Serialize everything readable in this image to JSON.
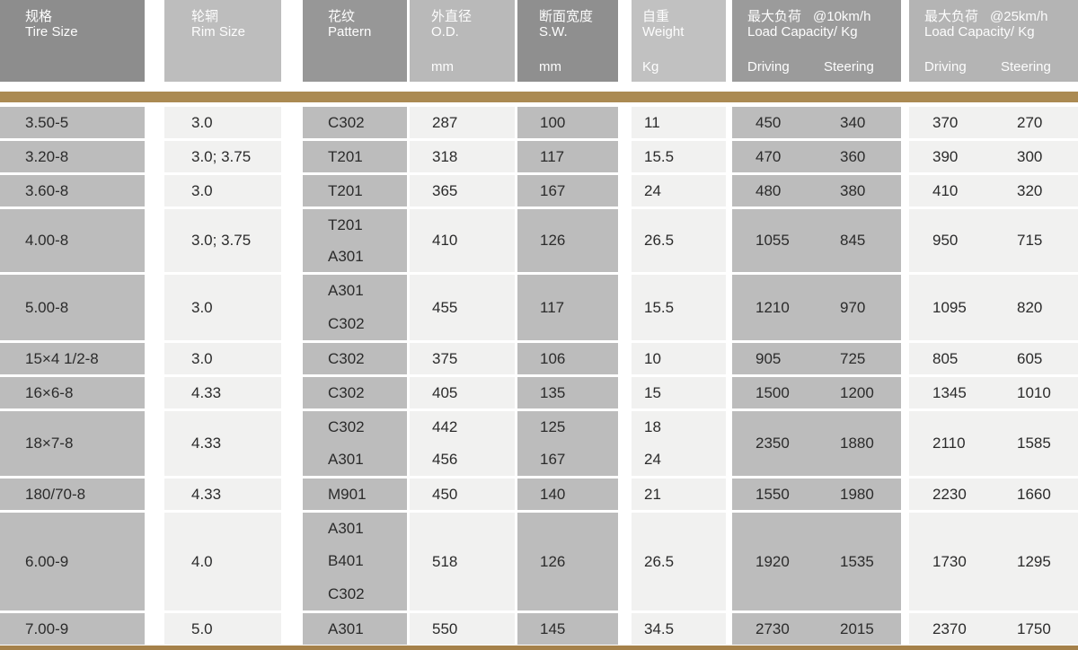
{
  "table": {
    "columns": [
      {
        "id": "tire_size",
        "title_cn": "规格",
        "title_en": "Tire Size",
        "unit": ""
      },
      {
        "id": "rim_size",
        "title_cn": "轮辋",
        "title_en": "Rim Size",
        "unit": ""
      },
      {
        "id": "pattern",
        "title_cn": "花纹",
        "title_en": "Pattern",
        "unit": ""
      },
      {
        "id": "od",
        "title_cn": "外直径",
        "title_en": "O.D.",
        "unit": "mm"
      },
      {
        "id": "sw",
        "title_cn": "断面宽度",
        "title_en": "S.W.",
        "unit": "mm"
      },
      {
        "id": "weight",
        "title_cn": "自重",
        "title_en": "Weight",
        "unit": "Kg"
      },
      {
        "id": "load10",
        "title_cn": "最大负荷",
        "speed": "@10km/h",
        "title_en": "Load Capacity/ Kg",
        "sub": [
          "Driving",
          "Steering"
        ]
      },
      {
        "id": "load25",
        "title_cn": "最大负荷",
        "speed": "@25km/h",
        "title_en": "Load Capacity/ Kg",
        "sub": [
          "Driving",
          "Steering"
        ]
      }
    ],
    "rows": [
      {
        "tire_size": "3.50-5",
        "rim_size": "3.0",
        "pattern": [
          "C302"
        ],
        "od": [
          "287"
        ],
        "sw": [
          "100"
        ],
        "weight": [
          "11"
        ],
        "load10": [
          "450",
          "340"
        ],
        "load25": [
          "370",
          "270"
        ]
      },
      {
        "tire_size": "3.20-8",
        "rim_size": "3.0; 3.75",
        "pattern": [
          "T201"
        ],
        "od": [
          "318"
        ],
        "sw": [
          "117"
        ],
        "weight": [
          "15.5"
        ],
        "load10": [
          "470",
          "360"
        ],
        "load25": [
          "390",
          "300"
        ]
      },
      {
        "tire_size": "3.60-8",
        "rim_size": "3.0",
        "pattern": [
          "T201"
        ],
        "od": [
          "365"
        ],
        "sw": [
          "167"
        ],
        "weight": [
          "24"
        ],
        "load10": [
          "480",
          "380"
        ],
        "load25": [
          "410",
          "320"
        ]
      },
      {
        "tire_size": "4.00-8",
        "rim_size": "3.0; 3.75",
        "pattern": [
          "T201",
          "A301"
        ],
        "od": [
          "410"
        ],
        "sw": [
          "126"
        ],
        "weight": [
          "26.5"
        ],
        "load10": [
          "1055",
          "845"
        ],
        "load25": [
          "950",
          "715"
        ]
      },
      {
        "tire_size": "5.00-8",
        "rim_size": "3.0",
        "pattern": [
          "A301",
          "C302"
        ],
        "od": [
          "455"
        ],
        "sw": [
          "117"
        ],
        "weight": [
          "15.5"
        ],
        "load10": [
          "1210",
          "970"
        ],
        "load25": [
          "1095",
          "820"
        ]
      },
      {
        "tire_size": "15×4 1/2-8",
        "rim_size": "3.0",
        "pattern": [
          "C302"
        ],
        "od": [
          "375"
        ],
        "sw": [
          "106"
        ],
        "weight": [
          "10"
        ],
        "load10": [
          "905",
          "725"
        ],
        "load25": [
          "805",
          "605"
        ]
      },
      {
        "tire_size": "16×6-8",
        "rim_size": "4.33",
        "pattern": [
          "C302"
        ],
        "od": [
          "405"
        ],
        "sw": [
          "135"
        ],
        "weight": [
          "15"
        ],
        "load10": [
          "1500",
          "1200"
        ],
        "load25": [
          "1345",
          "1010"
        ]
      },
      {
        "tire_size": "18×7-8",
        "rim_size": "4.33",
        "pattern": [
          "C302",
          "A301"
        ],
        "od": [
          "442",
          "456"
        ],
        "sw": [
          "125",
          "167"
        ],
        "weight": [
          "18",
          "24"
        ],
        "load10": [
          "2350",
          "1880"
        ],
        "load25": [
          "2110",
          "1585"
        ]
      },
      {
        "tire_size": "180/70-8",
        "rim_size": "4.33",
        "pattern": [
          "M901"
        ],
        "od": [
          "450"
        ],
        "sw": [
          "140"
        ],
        "weight": [
          "21"
        ],
        "load10": [
          "1550",
          "1980"
        ],
        "load25": [
          "2230",
          "1660"
        ]
      },
      {
        "tire_size": "6.00-9",
        "rim_size": "4.0",
        "pattern": [
          "A301",
          "B401",
          "C302"
        ],
        "od": [
          "518"
        ],
        "sw": [
          "126"
        ],
        "weight": [
          "26.5"
        ],
        "load10": [
          "1920",
          "1535"
        ],
        "load25": [
          "1730",
          "1295"
        ]
      },
      {
        "tire_size": "7.00-9",
        "rim_size": "5.0",
        "pattern": [
          "A301"
        ],
        "od": [
          "550"
        ],
        "sw": [
          "145"
        ],
        "weight": [
          "34.5"
        ],
        "load10": [
          "2730",
          "2015"
        ],
        "load25": [
          "2370",
          "1750"
        ]
      }
    ]
  },
  "colors": {
    "gold_top": "#ab8a52",
    "gold_bottom": "#a5814a",
    "header_bg": [
      "#8d8d8d",
      "#bdbdbd",
      "#979797",
      "#b9b9b9",
      "#8f8f8f",
      "#c1c1c1",
      "#9b9b9b",
      "#b4b4b4"
    ],
    "cell_dark": "#bcbcbc",
    "cell_light": "#f1f1f0",
    "header_text": "#fdfdfd",
    "cell_text": "#2b2b2b"
  }
}
